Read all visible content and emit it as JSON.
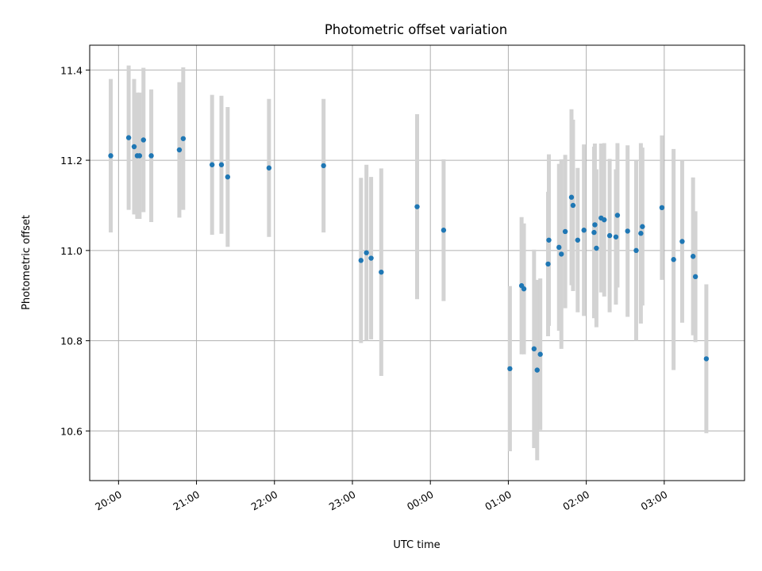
{
  "chart_data": {
    "type": "scatter",
    "title": "Photometric offset variation",
    "xlabel": "UTC time",
    "ylabel": "Photometric offset",
    "grid": true,
    "colors": {
      "points": "#1f77b4",
      "errorbars": "#d3d3d3",
      "grid": "#b0b0b0"
    },
    "x_unit": "hours relative to 00:00 UTC",
    "xlim": [
      -4.37,
      4.03
    ],
    "ylim": [
      10.49,
      11.455
    ],
    "x_ticks": [
      {
        "value": -4,
        "label": "20:00"
      },
      {
        "value": -3,
        "label": "21:00"
      },
      {
        "value": -2,
        "label": "22:00"
      },
      {
        "value": -1,
        "label": "23:00"
      },
      {
        "value": 0,
        "label": "00:00"
      },
      {
        "value": 1,
        "label": "01:00"
      },
      {
        "value": 2,
        "label": "02:00"
      },
      {
        "value": 3,
        "label": "03:00"
      }
    ],
    "y_ticks": [
      {
        "value": 10.6,
        "label": "10.6"
      },
      {
        "value": 10.8,
        "label": "10.8"
      },
      {
        "value": 11.0,
        "label": "11.0"
      },
      {
        "value": 11.2,
        "label": "11.2"
      },
      {
        "value": 11.4,
        "label": "11.4"
      }
    ],
    "points": [
      {
        "x": -4.1,
        "y": 11.21,
        "err": 0.17
      },
      {
        "x": -3.87,
        "y": 11.25,
        "err": 0.16
      },
      {
        "x": -3.8,
        "y": 11.23,
        "err": 0.15
      },
      {
        "x": -3.76,
        "y": 11.21,
        "err": 0.14
      },
      {
        "x": -3.73,
        "y": 11.21,
        "err": 0.14
      },
      {
        "x": -3.68,
        "y": 11.245,
        "err": 0.16
      },
      {
        "x": -3.58,
        "y": 11.21,
        "err": 0.147
      },
      {
        "x": -3.22,
        "y": 11.223,
        "err": 0.15
      },
      {
        "x": -3.17,
        "y": 11.248,
        "err": 0.158
      },
      {
        "x": -2.8,
        "y": 11.19,
        "err": 0.155
      },
      {
        "x": -2.68,
        "y": 11.19,
        "err": 0.153
      },
      {
        "x": -2.6,
        "y": 11.163,
        "err": 0.155
      },
      {
        "x": -2.07,
        "y": 11.183,
        "err": 0.153
      },
      {
        "x": -1.37,
        "y": 11.188,
        "err": 0.148
      },
      {
        "x": -0.89,
        "y": 10.978,
        "err": 0.183
      },
      {
        "x": -0.82,
        "y": 10.995,
        "err": 0.195
      },
      {
        "x": -0.76,
        "y": 10.983,
        "err": 0.18
      },
      {
        "x": -0.63,
        "y": 10.952,
        "err": 0.23
      },
      {
        "x": -0.17,
        "y": 11.097,
        "err": 0.205
      },
      {
        "x": 0.17,
        "y": 11.045,
        "err": 0.157
      },
      {
        "x": 1.02,
        "y": 10.738,
        "err": 0.183
      },
      {
        "x": 1.17,
        "y": 10.922,
        "err": 0.152
      },
      {
        "x": 1.2,
        "y": 10.915,
        "err": 0.145
      },
      {
        "x": 1.33,
        "y": 10.782,
        "err": 0.22
      },
      {
        "x": 1.37,
        "y": 10.735,
        "err": 0.2
      },
      {
        "x": 1.41,
        "y": 10.77,
        "err": 0.168
      },
      {
        "x": 1.51,
        "y": 10.97,
        "err": 0.16
      },
      {
        "x": 1.52,
        "y": 11.023,
        "err": 0.19
      },
      {
        "x": 1.65,
        "y": 11.007,
        "err": 0.185
      },
      {
        "x": 1.68,
        "y": 10.992,
        "err": 0.21
      },
      {
        "x": 1.73,
        "y": 11.042,
        "err": 0.17
      },
      {
        "x": 1.81,
        "y": 11.118,
        "err": 0.195
      },
      {
        "x": 1.83,
        "y": 11.1,
        "err": 0.19
      },
      {
        "x": 1.89,
        "y": 11.023,
        "err": 0.16
      },
      {
        "x": 1.97,
        "y": 11.045,
        "err": 0.19
      },
      {
        "x": 2.1,
        "y": 11.04,
        "err": 0.19
      },
      {
        "x": 2.11,
        "y": 11.057,
        "err": 0.18
      },
      {
        "x": 2.13,
        "y": 11.005,
        "err": 0.175
      },
      {
        "x": 2.19,
        "y": 11.072,
        "err": 0.165
      },
      {
        "x": 2.23,
        "y": 11.068,
        "err": 0.17
      },
      {
        "x": 2.3,
        "y": 11.033,
        "err": 0.17
      },
      {
        "x": 2.38,
        "y": 11.03,
        "err": 0.15
      },
      {
        "x": 2.4,
        "y": 11.078,
        "err": 0.16
      },
      {
        "x": 2.53,
        "y": 11.043,
        "err": 0.19
      },
      {
        "x": 2.64,
        "y": 11.0,
        "err": 0.2
      },
      {
        "x": 2.7,
        "y": 11.038,
        "err": 0.2
      },
      {
        "x": 2.72,
        "y": 11.053,
        "err": 0.175
      },
      {
        "x": 2.97,
        "y": 11.095,
        "err": 0.16
      },
      {
        "x": 3.12,
        "y": 10.98,
        "err": 0.245
      },
      {
        "x": 3.23,
        "y": 11.02,
        "err": 0.18
      },
      {
        "x": 3.37,
        "y": 10.987,
        "err": 0.175
      },
      {
        "x": 3.4,
        "y": 10.942,
        "err": 0.145
      },
      {
        "x": 3.54,
        "y": 10.76,
        "err": 0.165
      }
    ]
  }
}
